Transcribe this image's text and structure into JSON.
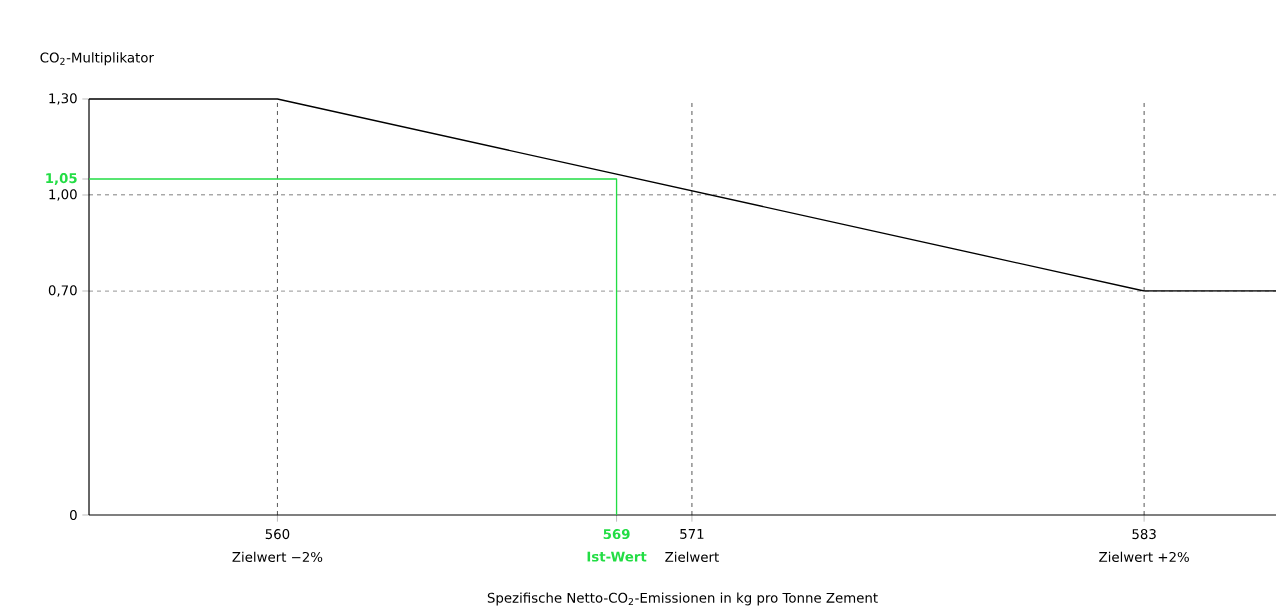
{
  "chart_data": {
    "type": "line",
    "xlabel": "Spezifische Netto-CO$_{2}$-Emissionen in kg pro Tonne Zement",
    "ylabel": "CO$_{2}$-Multiplikator",
    "series": [
      {
        "color": "#000000",
        "x": [
          555,
          560,
          583,
          586.5
        ],
        "values": [
          1.3,
          1.3,
          0.7,
          0.7
        ]
      },
      {
        "name": "Ist-Wert",
        "color": "#22dd44",
        "x": [
          555,
          569,
          569
        ],
        "values": [
          1.05,
          1.05,
          0
        ]
      }
    ],
    "xlim": [
      555,
      586.5
    ],
    "ylim": [
      0,
      1.3
    ],
    "xticks": [
      560,
      569,
      571,
      583
    ],
    "yticks": [
      0,
      {
        "value": 0.7,
        "label": "0,70"
      },
      {
        "value": 1.0,
        "label": "1,00"
      },
      {
        "value": 1.05,
        "label": "1,05"
      },
      {
        "value": 1.3,
        "label": "1,30"
      }
    ],
    "ref_lines": [
      {
        "axis": "x",
        "value": 560,
        "line_style": "dashed"
      },
      {
        "axis": "x",
        "value": 571,
        "line_style": "dashed"
      },
      {
        "axis": "x",
        "value": 583,
        "line_style": "dashed"
      },
      {
        "axis": "y",
        "value": 0.7,
        "line_style": "dashed"
      },
      {
        "axis": "y",
        "value": 1.0,
        "line_style": "dashed"
      }
    ],
    "annotations": [
      {
        "text": "Zielwert −2%",
        "x": 560,
        "y": 0
      },
      {
        "text": "Zielwert",
        "x": 571,
        "y": 0
      },
      {
        "text": "Zielwert +2%",
        "x": 583,
        "y": 0
      }
    ],
    "marker": "none",
    "line_style": "solid",
    "grid": false,
    "legend": false
  }
}
